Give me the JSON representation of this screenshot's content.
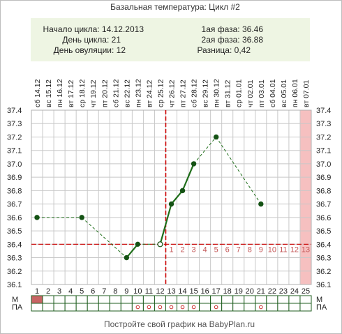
{
  "chart_data": {
    "type": "line",
    "title": "Базальная температура: Цикл #2",
    "info": {
      "start_label": "Начало цикла: 14.12.2013",
      "day_label": "День цикла: 21",
      "ovulation_label": "День овуляции: 12",
      "phase1_label": "1ая фаза: 36.46",
      "phase2_label": "2ая фаза: 36.88",
      "diff_label": "Разница: 0,42"
    },
    "days": [
      1,
      2,
      3,
      4,
      5,
      6,
      7,
      8,
      9,
      10,
      11,
      12,
      13,
      14,
      15,
      16,
      17,
      18,
      19,
      20,
      21,
      22,
      23,
      24,
      25
    ],
    "weekdays": [
      "сб",
      "вс",
      "пн",
      "вт",
      "ср",
      "чт",
      "пт",
      "сб",
      "вс",
      "пн",
      "вт",
      "ср",
      "чт",
      "пт",
      "сб",
      "вс",
      "пн",
      "вт",
      "ср",
      "чт",
      "пт",
      "сб",
      "вс",
      "пн",
      "вт"
    ],
    "dates": [
      "14.12",
      "15.12",
      "16.12",
      "17.12",
      "18.12",
      "19.12",
      "20.12",
      "21.12",
      "22.12",
      "23.12",
      "24.12",
      "25.12",
      "26.12",
      "27.12",
      "28.12",
      "29.12",
      "30.12",
      "31.12",
      "01.01",
      "02.01",
      "03.01",
      "04.01",
      "05.01",
      "06.01",
      "07.01"
    ],
    "y_ticks": [
      "36.1",
      "36.2",
      "36.3",
      "36.4",
      "36.5",
      "36.6",
      "36.7",
      "36.8",
      "36.9",
      "37.0",
      "37.1",
      "37.2",
      "37.3",
      "37.4"
    ],
    "ylim": [
      36.1,
      37.4
    ],
    "grid": true,
    "coverline": 36.4,
    "ovulation_day": 12,
    "highlight_day": 25,
    "points": [
      {
        "day": 1,
        "temp": 36.6
      },
      {
        "day": 5,
        "temp": 36.6
      },
      {
        "day": 9,
        "temp": 36.3
      },
      {
        "day": 10,
        "temp": 36.4
      },
      {
        "day": 12,
        "temp": 36.4
      },
      {
        "day": 13,
        "temp": 36.7
      },
      {
        "day": 14,
        "temp": 36.8
      },
      {
        "day": 15,
        "temp": 37.0
      },
      {
        "day": 17,
        "temp": 37.2
      },
      {
        "day": 21,
        "temp": 36.7
      }
    ],
    "phase_numbers": [
      "1",
      "2",
      "3",
      "4",
      "5",
      "6",
      "7",
      "8",
      "9",
      "10",
      "11",
      "12",
      "13"
    ],
    "phase_start_day": 13,
    "m_label": "М",
    "pa_label": "ПА",
    "m_days": [
      1
    ],
    "pa_days": [
      10,
      11,
      12,
      13,
      14,
      15,
      17,
      21
    ],
    "colors": {
      "grid": "#c8c8c8",
      "axis": "#b0b0b0",
      "line": "#1f6e1a",
      "marker": "#145214",
      "coverline": "#cc0000",
      "ovulation": "#cc0000",
      "phase_number": "#c45858",
      "highlight": "#f6c0c0",
      "info_bg": "#eef5e3",
      "m_fill": "#c86464",
      "pa_marker": "#cc3333",
      "table_border": "#1f5e1f"
    }
  },
  "footer": "Постройте свой график на BabyPlan.ru"
}
